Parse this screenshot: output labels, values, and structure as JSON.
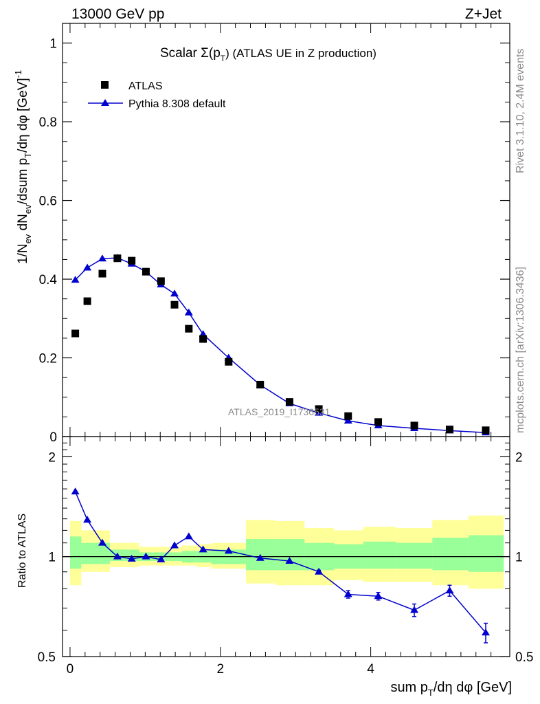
{
  "header": {
    "left": "13000 GeV pp",
    "right": "Z+Jet"
  },
  "side_text": {
    "rivet": "Rivet 3.1.10,  2.4M events",
    "mcplots": "mcplots.cern.ch [arXiv:1306.3436]"
  },
  "watermark": "ATLAS_2019_I1736531",
  "chart_data": [
    {
      "type": "scatter",
      "title_main": "Scalar Σ(p",
      "title_sub": "T",
      "title_rest": ") (ATLAS UE in Z production)",
      "ylabel": "1/N",
      "ylabel_parts": [
        "1/N",
        "ev",
        " dN",
        "ev",
        "/dsum p",
        "T",
        "/dη dφ  [GeV]",
        "-1"
      ],
      "xlim": [
        -0.1,
        5.85
      ],
      "ylim": [
        0,
        1.05
      ],
      "yticks": [
        0,
        0.2,
        0.4,
        0.6,
        0.8,
        1
      ],
      "ytick_labels": [
        "0",
        "0.2",
        "0.4",
        "0.6",
        "0.8",
        "1"
      ],
      "legend_position": "top-left",
      "series": [
        {
          "name": "ATLAS",
          "marker": "square",
          "color": "#000000",
          "x": [
            0.07,
            0.23,
            0.43,
            0.63,
            0.82,
            1.01,
            1.21,
            1.39,
            1.58,
            1.77,
            2.11,
            2.53,
            2.92,
            3.31,
            3.7,
            4.1,
            4.58,
            5.05,
            5.53
          ],
          "y": [
            0.262,
            0.344,
            0.414,
            0.453,
            0.447,
            0.419,
            0.395,
            0.335,
            0.274,
            0.248,
            0.19,
            0.132,
            0.088,
            0.07,
            0.052,
            0.037,
            0.028,
            0.018,
            0.016
          ]
        },
        {
          "name": "Pythia 8.308 default",
          "marker": "triangle",
          "color": "#0000cc",
          "x": [
            0.07,
            0.23,
            0.43,
            0.63,
            0.82,
            1.01,
            1.21,
            1.39,
            1.58,
            1.77,
            2.11,
            2.53,
            2.92,
            3.31,
            3.7,
            4.1,
            4.58,
            5.05,
            5.53
          ],
          "y": [
            0.398,
            0.429,
            0.452,
            0.454,
            0.439,
            0.419,
            0.386,
            0.363,
            0.315,
            0.26,
            0.2,
            0.131,
            0.084,
            0.06,
            0.04,
            0.028,
            0.021,
            0.015,
            0.01
          ]
        }
      ]
    },
    {
      "type": "line",
      "ylabel": "Ratio to ATLAS",
      "xlabel_parts": [
        "sum p",
        "T",
        "/dη dφ [GeV]"
      ],
      "xlim": [
        -0.1,
        5.85
      ],
      "ylim": [
        0.5,
        2.3
      ],
      "log_y": true,
      "yticks": [
        0.5,
        1,
        2
      ],
      "ytick_labels": [
        "0.5",
        "1",
        "2"
      ],
      "xticks": [
        0,
        2,
        4
      ],
      "xtick_labels": [
        "0",
        "2",
        "4"
      ],
      "bands": {
        "edges": [
          0,
          0.15,
          0.33,
          0.53,
          0.73,
          0.92,
          1.11,
          1.3,
          1.49,
          1.68,
          1.88,
          2.34,
          2.73,
          3.12,
          3.51,
          3.9,
          4.34,
          4.82,
          5.3,
          5.77
        ],
        "yellow_lo": [
          0.82,
          0.9,
          0.9,
          0.93,
          0.93,
          0.94,
          0.94,
          0.94,
          0.94,
          0.93,
          0.92,
          0.83,
          0.82,
          0.82,
          0.85,
          0.84,
          0.84,
          0.82,
          0.8
        ],
        "yellow_hi": [
          1.28,
          1.2,
          1.2,
          1.1,
          1.1,
          1.07,
          1.07,
          1.07,
          1.08,
          1.09,
          1.1,
          1.29,
          1.28,
          1.22,
          1.2,
          1.23,
          1.22,
          1.29,
          1.33
        ],
        "green_lo": [
          0.92,
          0.95,
          0.95,
          0.97,
          0.97,
          0.97,
          0.97,
          0.97,
          0.96,
          0.96,
          0.95,
          0.91,
          0.91,
          0.91,
          0.92,
          0.92,
          0.92,
          0.91,
          0.9
        ],
        "green_hi": [
          1.15,
          1.1,
          1.1,
          1.05,
          1.05,
          1.03,
          1.03,
          1.03,
          1.04,
          1.04,
          1.05,
          1.13,
          1.13,
          1.1,
          1.09,
          1.11,
          1.1,
          1.14,
          1.16
        ],
        "yellow_color": "#ffff99",
        "green_color": "#99ff99"
      },
      "series": [
        {
          "name": "Pythia 8.308 default",
          "color": "#0000cc",
          "x": [
            0.07,
            0.23,
            0.43,
            0.63,
            0.82,
            1.01,
            1.21,
            1.39,
            1.58,
            1.77,
            2.11,
            2.53,
            2.92,
            3.31,
            3.7,
            4.1,
            4.58,
            5.05,
            5.53
          ],
          "y": [
            1.57,
            1.29,
            1.1,
            1.0,
            0.985,
            1.0,
            0.98,
            1.08,
            1.15,
            1.05,
            1.04,
            0.99,
            0.97,
            0.9,
            0.77,
            0.76,
            0.69,
            0.79,
            0.59
          ],
          "err": [
            0,
            0,
            0,
            0,
            0,
            0,
            0,
            0,
            0,
            0,
            0,
            0,
            0,
            0.01,
            0.02,
            0.02,
            0.03,
            0.03,
            0.04
          ]
        }
      ]
    }
  ]
}
